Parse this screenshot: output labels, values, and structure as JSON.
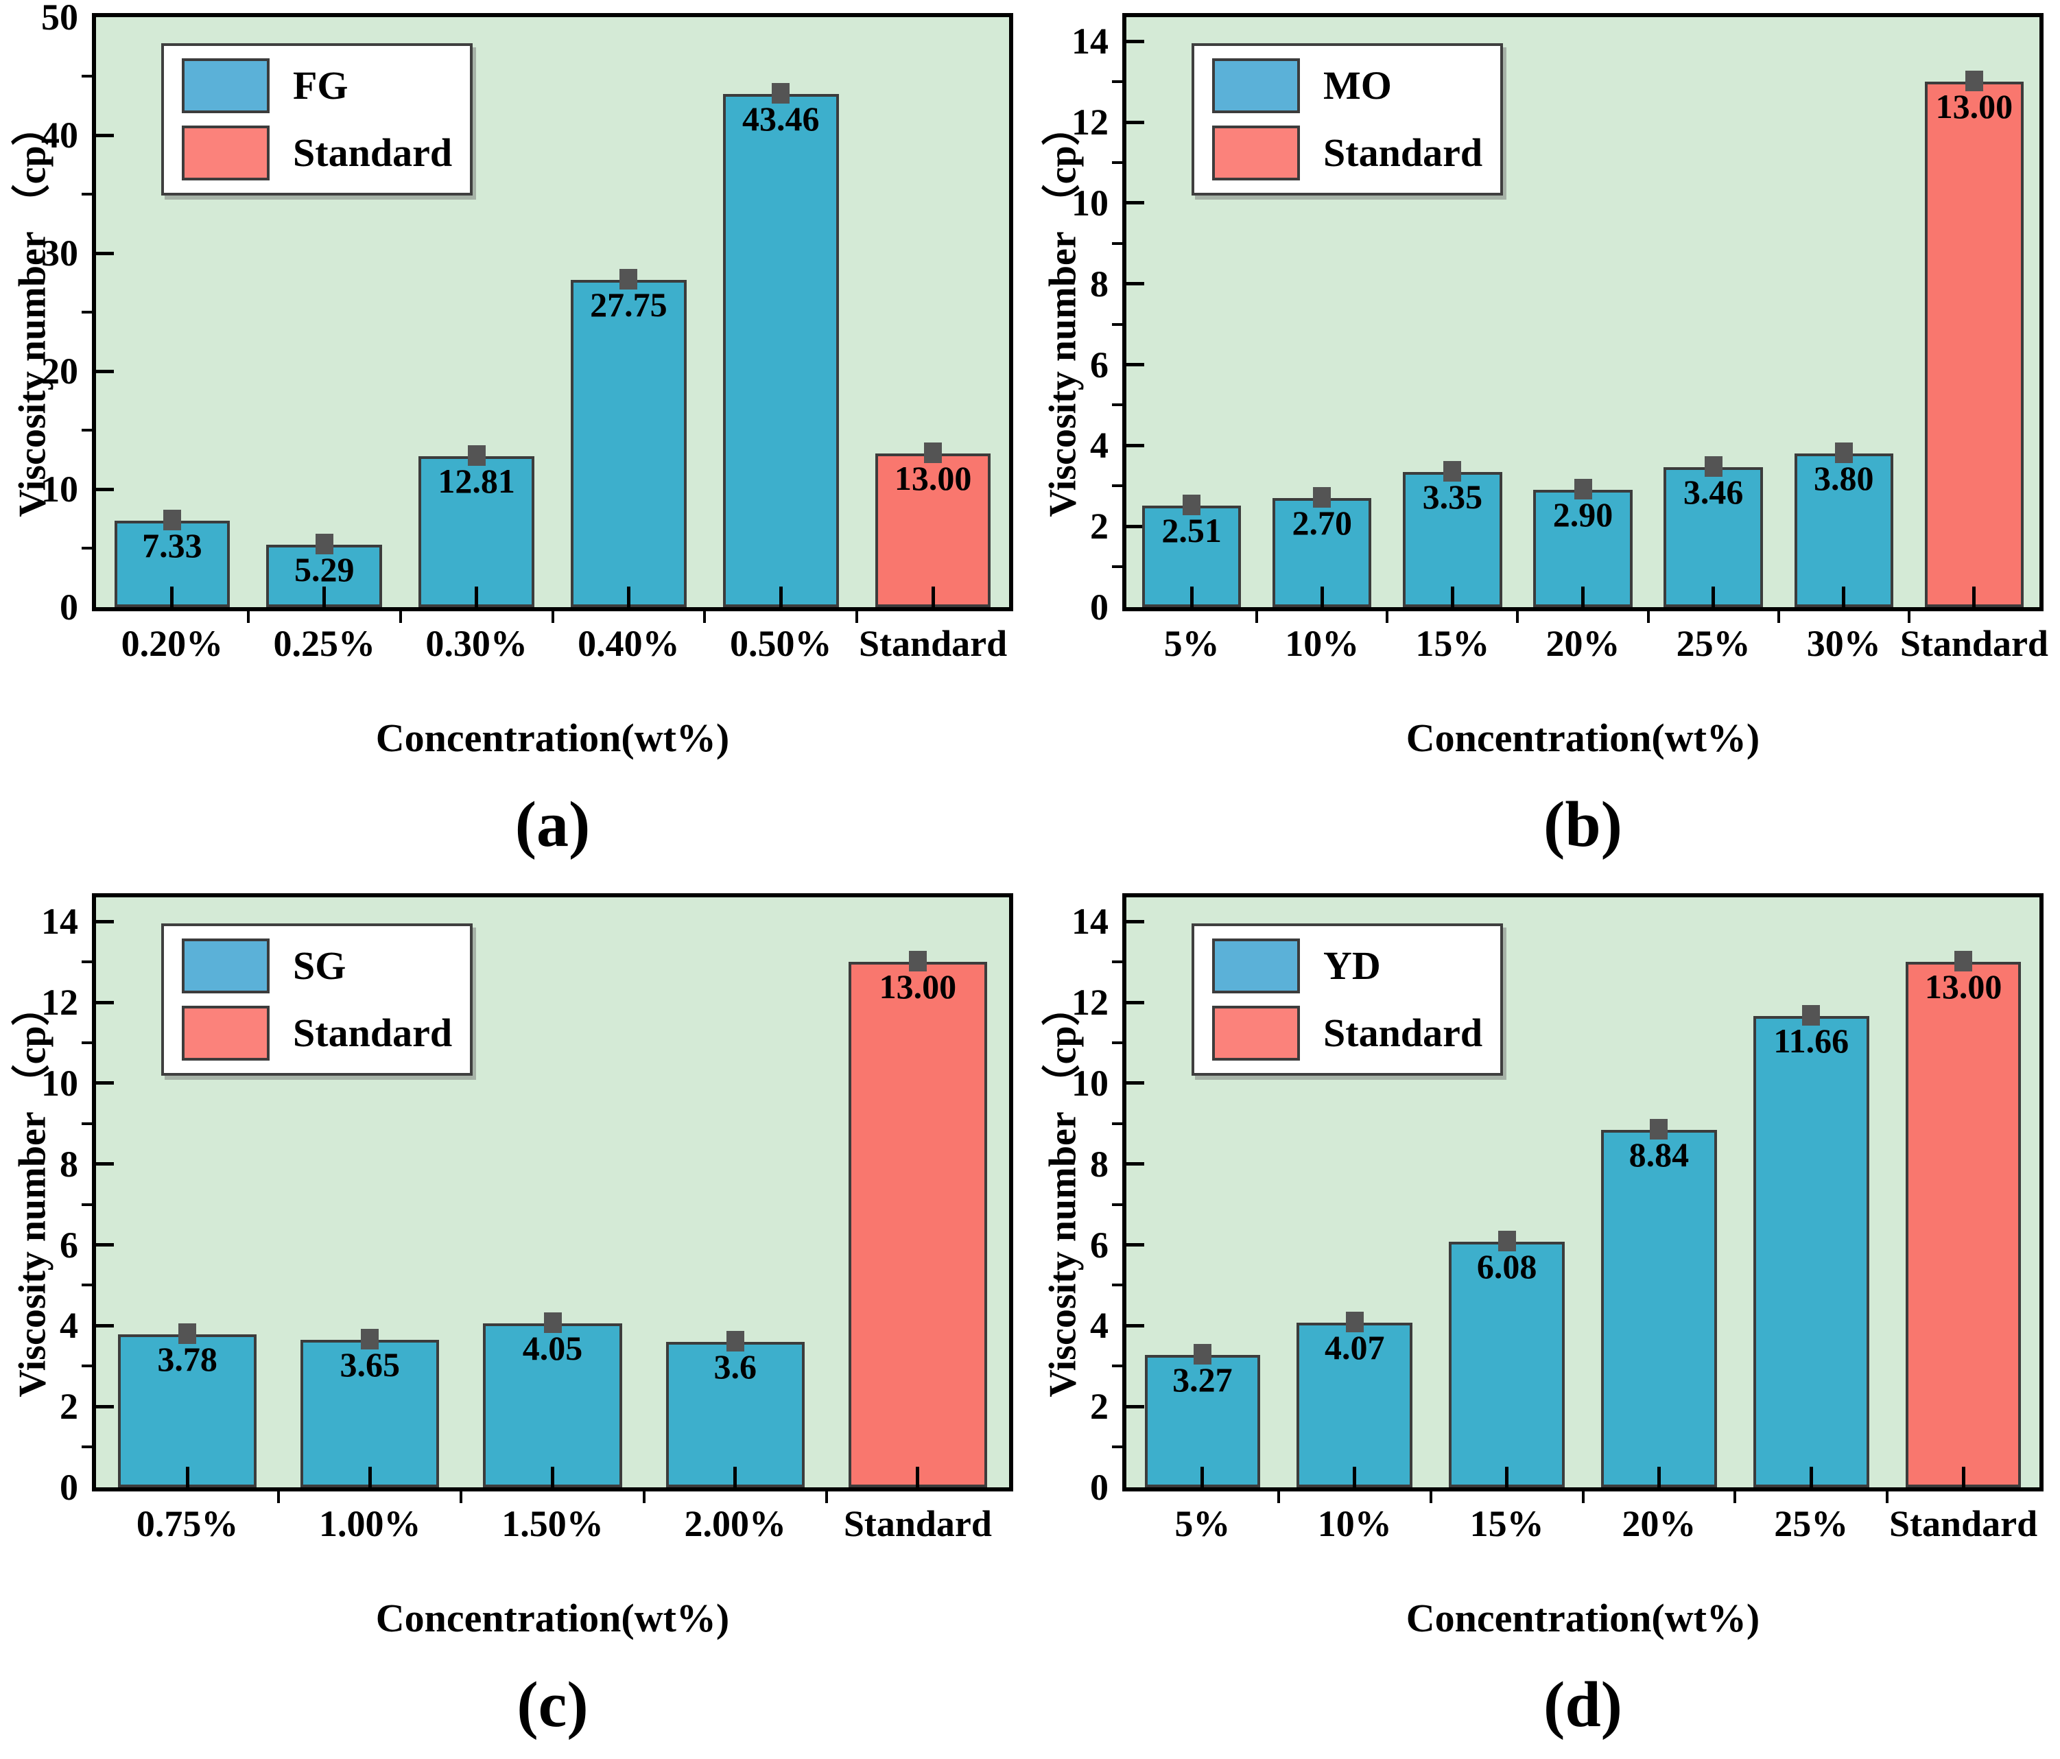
{
  "figure": {
    "colors": {
      "plot_background": "#d4ead6",
      "bar_blue": "#3dafcc",
      "bar_red": "#f9776e",
      "legend_blue": "#5bb1d8",
      "legend_red": "#fb827b",
      "bar_edge": "#3c3c3c",
      "error_cap": "#545454",
      "axis": "#000000",
      "text": "#000000"
    }
  },
  "chart_data": [
    {
      "type": "bar",
      "panel_label": "(a)",
      "series_name": "FG",
      "legend": [
        "FG",
        "Standard"
      ],
      "categories": [
        "0.20%",
        "0.25%",
        "0.30%",
        "0.40%",
        "0.50%",
        "Standard"
      ],
      "values": [
        7.33,
        5.29,
        12.81,
        27.75,
        43.46,
        13.0
      ],
      "value_labels": [
        "7.33",
        "5.29",
        "12.81",
        "27.75",
        "43.46",
        "13.00"
      ],
      "standard_index": 5,
      "xlabel": "Concentration(wt%)",
      "ylabel": "Viscosity number （cp）",
      "ylim": [
        0,
        50
      ],
      "yticks": [
        0,
        10,
        20,
        30,
        40,
        50
      ],
      "yminors": [
        5,
        15,
        25,
        35,
        45
      ],
      "grid": false,
      "legend_position": "top-left",
      "error_bars": true
    },
    {
      "type": "bar",
      "panel_label": "(b)",
      "series_name": "MO",
      "legend": [
        "MO",
        "Standard"
      ],
      "categories": [
        "5%",
        "10%",
        "15%",
        "20%",
        "25%",
        "30%",
        "Standard"
      ],
      "values": [
        2.51,
        2.7,
        3.35,
        2.9,
        3.46,
        3.8,
        13.0
      ],
      "value_labels": [
        "2.51",
        "2.70",
        "3.35",
        "2.90",
        "3.46",
        "3.80",
        "13.00"
      ],
      "standard_index": 6,
      "xlabel": "Concentration(wt%)",
      "ylabel": "Viscosity number （cp）",
      "ylim": [
        0,
        14.6
      ],
      "yticks": [
        0,
        2,
        4,
        6,
        8,
        10,
        12,
        14
      ],
      "yminors": [
        1,
        3,
        5,
        7,
        9,
        11,
        13
      ],
      "grid": false,
      "legend_position": "top-left",
      "error_bars": true
    },
    {
      "type": "bar",
      "panel_label": "(c)",
      "series_name": "SG",
      "legend": [
        "SG",
        "Standard"
      ],
      "categories": [
        "0.75%",
        "1.00%",
        "1.50%",
        "2.00%",
        "Standard"
      ],
      "values": [
        3.78,
        3.65,
        4.05,
        3.6,
        13.0
      ],
      "value_labels": [
        "3.78",
        "3.65",
        "4.05",
        "3.6",
        "13.00"
      ],
      "standard_index": 4,
      "xlabel": "Concentration(wt%)",
      "ylabel": "Viscosity number （cp）",
      "ylim": [
        0,
        14.6
      ],
      "yticks": [
        0,
        2,
        4,
        6,
        8,
        10,
        12,
        14
      ],
      "yminors": [
        1,
        3,
        5,
        7,
        9,
        11,
        13
      ],
      "grid": false,
      "legend_position": "top-left",
      "error_bars": true
    },
    {
      "type": "bar",
      "panel_label": "(d)",
      "series_name": "YD",
      "legend": [
        "YD",
        "Standard"
      ],
      "categories": [
        "5%",
        "10%",
        "15%",
        "20%",
        "25%",
        "Standard"
      ],
      "values": [
        3.27,
        4.07,
        6.08,
        8.84,
        11.66,
        13.0
      ],
      "value_labels": [
        "3.27",
        "4.07",
        "6.08",
        "8.84",
        "11.66",
        "13.00"
      ],
      "standard_index": 5,
      "xlabel": "Concentration(wt%)",
      "ylabel": "Viscosity number （cp）",
      "ylim": [
        0,
        14.6
      ],
      "yticks": [
        0,
        2,
        4,
        6,
        8,
        10,
        12,
        14
      ],
      "yminors": [
        1,
        3,
        5,
        7,
        9,
        11,
        13
      ],
      "grid": false,
      "legend_position": "top-left",
      "error_bars": true
    }
  ]
}
